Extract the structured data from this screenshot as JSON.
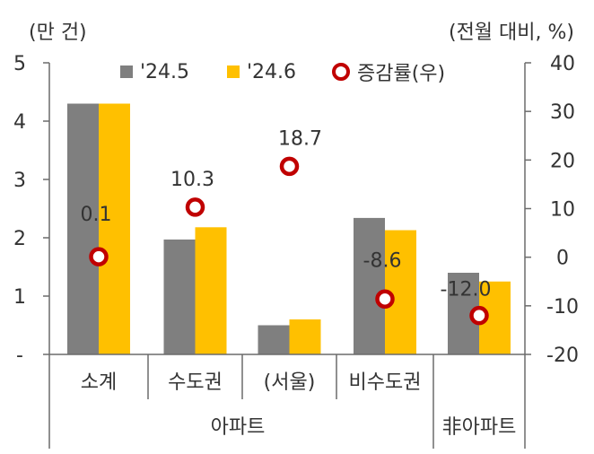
{
  "units": {
    "left": "(만 건)",
    "right": "(전월 대비, %)"
  },
  "legend": [
    {
      "label": "'24.5",
      "color": "#7f7f7f",
      "kind": "bar"
    },
    {
      "label": "'24.6",
      "color": "#ffc000",
      "kind": "bar"
    },
    {
      "label": "증감률(우)",
      "color": "#c00000",
      "kind": "marker"
    }
  ],
  "chart_data": {
    "type": "bar",
    "categories": [
      "소계",
      "수도권",
      "(서울)",
      "비수도권",
      "非아파트"
    ],
    "groups": [
      {
        "label": "아파트",
        "categories": [
          "소계",
          "수도권",
          "(서울)",
          "비수도권"
        ]
      },
      {
        "label": "非아파트",
        "categories": [
          "非아파트"
        ]
      }
    ],
    "series": [
      {
        "name": "'24.5",
        "axis": "left",
        "color": "#7f7f7f",
        "values": [
          4.3,
          1.97,
          0.5,
          2.34,
          1.4
        ]
      },
      {
        "name": "'24.6",
        "axis": "left",
        "color": "#ffc000",
        "values": [
          4.3,
          2.18,
          0.6,
          2.13,
          1.25
        ]
      },
      {
        "name": "증감률(우)",
        "axis": "right",
        "type": "scatter",
        "color": "#c00000",
        "values": [
          0.1,
          10.3,
          18.7,
          -8.6,
          -12.0
        ],
        "labels": [
          "0.1",
          "10.3",
          "18.7",
          "-8.6",
          "-12.0"
        ]
      }
    ],
    "y_left": {
      "ylim": [
        0,
        5
      ],
      "ticks": [
        "-",
        "1",
        "2",
        "3",
        "4",
        "5"
      ]
    },
    "y_right": {
      "ylim": [
        -20,
        40
      ],
      "ticks": [
        "-20",
        "-10",
        "0",
        "10",
        "20",
        "30",
        "40"
      ]
    },
    "grid": false,
    "legend_position": "top"
  }
}
